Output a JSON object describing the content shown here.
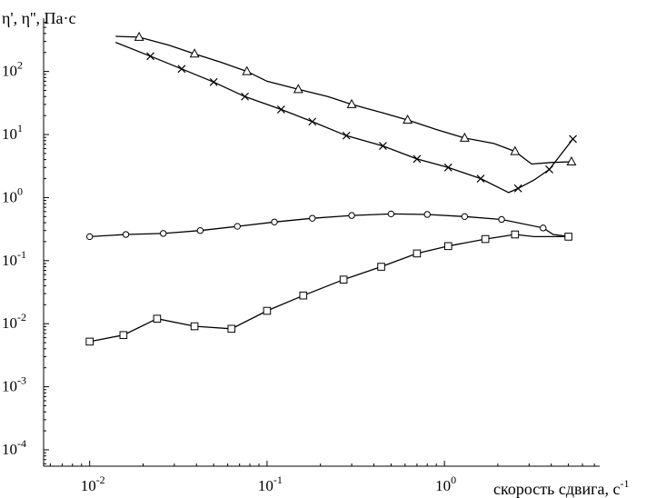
{
  "chart_data": {
    "type": "line",
    "title": "",
    "ylabel": "η', η'', Па·с",
    "xlabel": "скорость сдвига, с",
    "xlabel_sup": "-1",
    "x_scale": "log",
    "y_scale": "log",
    "xlim": [
      0.0055,
      7.5
    ],
    "ylim": [
      5.5e-05,
      700
    ],
    "grid": false,
    "legend": "none",
    "x_ticks": [
      {
        "value": 0.01,
        "base": "10",
        "exp": "-2"
      },
      {
        "value": 0.1,
        "base": "10",
        "exp": "-1"
      },
      {
        "value": 1,
        "base": "10",
        "exp": "0"
      }
    ],
    "y_ticks": [
      {
        "value": 0.0001,
        "base": "10",
        "exp": "-4"
      },
      {
        "value": 0.001,
        "base": "10",
        "exp": "-3"
      },
      {
        "value": 0.01,
        "base": "10",
        "exp": "-2"
      },
      {
        "value": 0.1,
        "base": "10",
        "exp": "-1"
      },
      {
        "value": 1,
        "base": "10",
        "exp": "0"
      },
      {
        "value": 10,
        "base": "10",
        "exp": "1"
      },
      {
        "value": 100,
        "base": "10",
        "exp": "2"
      }
    ],
    "series": [
      {
        "marker": "triangle",
        "x": [
          0.014,
          0.019,
          0.028,
          0.039,
          0.055,
          0.077,
          0.1,
          0.15,
          0.22,
          0.3,
          0.45,
          0.62,
          0.9,
          1.3,
          1.9,
          2.5,
          3.1,
          4.0,
          5.2
        ],
        "y": [
          360,
          350,
          260,
          190,
          140,
          100,
          70,
          52,
          40,
          30,
          22,
          17,
          12,
          8.8,
          7.2,
          5.4,
          3.4,
          3.6,
          3.7
        ],
        "marker_x": [
          0.019,
          0.039,
          0.077,
          0.15,
          0.3,
          0.62,
          1.3,
          2.5,
          5.2
        ]
      },
      {
        "marker": "cross",
        "x": [
          0.014,
          0.022,
          0.033,
          0.05,
          0.075,
          0.12,
          0.18,
          0.28,
          0.45,
          0.7,
          1.05,
          1.6,
          2.3,
          2.6,
          3.2,
          3.9,
          5.3
        ],
        "y": [
          290,
          175,
          110,
          68,
          40,
          25,
          16,
          9.6,
          6.6,
          4.1,
          3.0,
          2.0,
          1.2,
          1.4,
          1.9,
          2.8,
          8.5
        ],
        "marker_x": [
          0.022,
          0.033,
          0.05,
          0.075,
          0.12,
          0.18,
          0.28,
          0.45,
          0.7,
          1.05,
          1.6,
          2.6,
          3.9,
          5.3
        ]
      },
      {
        "marker": "circle",
        "x": [
          0.01,
          0.016,
          0.026,
          0.042,
          0.068,
          0.11,
          0.18,
          0.3,
          0.5,
          0.8,
          1.3,
          2.1,
          3.6,
          4.1,
          5.1
        ],
        "y": [
          0.24,
          0.26,
          0.27,
          0.3,
          0.35,
          0.41,
          0.47,
          0.52,
          0.55,
          0.54,
          0.5,
          0.45,
          0.33,
          0.26,
          0.24
        ],
        "marker_x": [
          0.01,
          0.016,
          0.026,
          0.042,
          0.068,
          0.11,
          0.18,
          0.3,
          0.5,
          0.8,
          1.3,
          2.1,
          3.6
        ]
      },
      {
        "marker": "square",
        "x": [
          0.01,
          0.0155,
          0.024,
          0.039,
          0.063,
          0.1,
          0.16,
          0.27,
          0.44,
          0.7,
          1.05,
          1.7,
          2.5,
          3.2,
          5.0
        ],
        "y": [
          0.0052,
          0.0066,
          0.012,
          0.0091,
          0.0083,
          0.016,
          0.028,
          0.05,
          0.08,
          0.13,
          0.17,
          0.22,
          0.26,
          0.24,
          0.24
        ],
        "marker_x": [
          0.01,
          0.0155,
          0.024,
          0.039,
          0.063,
          0.1,
          0.16,
          0.27,
          0.44,
          0.7,
          1.05,
          1.7,
          2.5,
          5.0
        ]
      }
    ]
  }
}
